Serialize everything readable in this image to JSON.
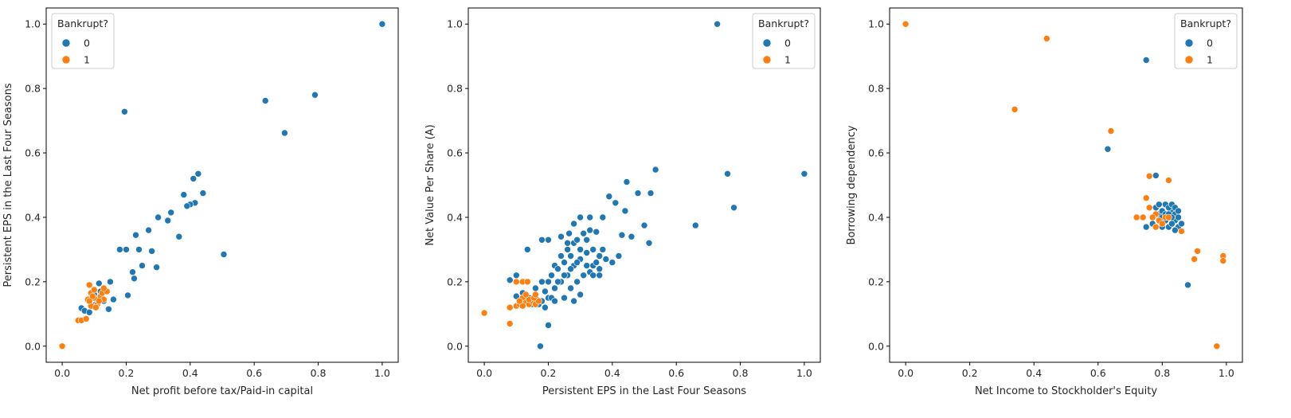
{
  "colors": {
    "class_0": "#1f77b4",
    "class_1": "#ff7f0e",
    "axis": "#000000"
  },
  "chart_data": [
    {
      "type": "scatter",
      "xlabel": "Net profit before tax/Paid-in capital",
      "ylabel": "Persistent EPS in the Last Four Seasons",
      "xlim": [
        -0.05,
        1.05
      ],
      "ylim": [
        -0.05,
        1.05
      ],
      "xticks": [
        "0.0",
        "0.2",
        "0.4",
        "0.6",
        "0.8",
        "1.0"
      ],
      "yticks": [
        "0.0",
        "0.2",
        "0.4",
        "0.6",
        "0.8",
        "1.0"
      ],
      "legend": {
        "title": "Bankrupt?",
        "labels": [
          "0",
          "1"
        ],
        "placement": "top-left"
      },
      "series": [
        {
          "name": "0",
          "points": [
            [
              1.0,
              1.0
            ],
            [
              0.79,
              0.78
            ],
            [
              0.635,
              0.762
            ],
            [
              0.695,
              0.662
            ],
            [
              0.195,
              0.728
            ],
            [
              0.505,
              0.285
            ],
            [
              0.44,
              0.475
            ],
            [
              0.425,
              0.535
            ],
            [
              0.41,
              0.52
            ],
            [
              0.415,
              0.445
            ],
            [
              0.4,
              0.44
            ],
            [
              0.365,
              0.34
            ],
            [
              0.295,
              0.245
            ],
            [
              0.205,
              0.158
            ],
            [
              0.225,
              0.21
            ],
            [
              0.16,
              0.145
            ],
            [
              0.145,
              0.115
            ],
            [
              0.13,
              0.14
            ],
            [
              0.06,
              0.118
            ],
            [
              0.07,
              0.11
            ],
            [
              0.085,
              0.105
            ],
            [
              0.115,
              0.195
            ],
            [
              0.18,
              0.3
            ],
            [
              0.2,
              0.3
            ],
            [
              0.23,
              0.345
            ],
            [
              0.38,
              0.47
            ],
            [
              0.39,
              0.435
            ],
            [
              0.3,
              0.4
            ],
            [
              0.33,
              0.39
            ],
            [
              0.34,
              0.415
            ],
            [
              0.27,
              0.36
            ],
            [
              0.25,
              0.25
            ],
            [
              0.28,
              0.295
            ],
            [
              0.105,
              0.13
            ],
            [
              0.12,
              0.17
            ],
            [
              0.15,
              0.2
            ],
            [
              0.22,
              0.23
            ],
            [
              0.24,
              0.3
            ],
            [
              0.1,
              0.16
            ],
            [
              0.06,
              0.08
            ]
          ]
        },
        {
          "name": "1",
          "points": [
            [
              0.0,
              0.0
            ],
            [
              0.05,
              0.08
            ],
            [
              0.06,
              0.08
            ],
            [
              0.075,
              0.085
            ],
            [
              0.085,
              0.19
            ],
            [
              0.08,
              0.145
            ],
            [
              0.09,
              0.165
            ],
            [
              0.1,
              0.175
            ],
            [
              0.1,
              0.15
            ],
            [
              0.11,
              0.13
            ],
            [
              0.12,
              0.155
            ],
            [
              0.125,
              0.165
            ],
            [
              0.13,
              0.145
            ],
            [
              0.14,
              0.17
            ],
            [
              0.09,
              0.125
            ],
            [
              0.105,
              0.12
            ],
            [
              0.085,
              0.14
            ],
            [
              0.095,
              0.155
            ],
            [
              0.115,
              0.14
            ],
            [
              0.13,
              0.18
            ]
          ]
        }
      ]
    },
    {
      "type": "scatter",
      "xlabel": "Persistent EPS in the Last Four Seasons",
      "ylabel": "Net Value Per Share (A)",
      "xlim": [
        -0.05,
        1.05
      ],
      "ylim": [
        -0.05,
        1.05
      ],
      "xticks": [
        "0.0",
        "0.2",
        "0.4",
        "0.6",
        "0.8",
        "1.0"
      ],
      "yticks": [
        "0.0",
        "0.2",
        "0.4",
        "0.6",
        "0.8",
        "1.0"
      ],
      "legend": {
        "title": "Bankrupt?",
        "labels": [
          "0",
          "1"
        ],
        "placement": "top-right"
      },
      "series": [
        {
          "name": "0",
          "points": [
            [
              0.728,
              1.0
            ],
            [
              0.76,
              0.535
            ],
            [
              1.0,
              0.535
            ],
            [
              0.78,
              0.43
            ],
            [
              0.66,
              0.375
            ],
            [
              0.535,
              0.548
            ],
            [
              0.52,
              0.475
            ],
            [
              0.445,
              0.51
            ],
            [
              0.48,
              0.475
            ],
            [
              0.5,
              0.375
            ],
            [
              0.46,
              0.34
            ],
            [
              0.515,
              0.32
            ],
            [
              0.43,
              0.345
            ],
            [
              0.44,
              0.42
            ],
            [
              0.39,
              0.465
            ],
            [
              0.41,
              0.445
            ],
            [
              0.37,
              0.4
            ],
            [
              0.35,
              0.355
            ],
            [
              0.33,
              0.4
            ],
            [
              0.3,
              0.4
            ],
            [
              0.28,
              0.38
            ],
            [
              0.265,
              0.35
            ],
            [
              0.175,
              0.0
            ],
            [
              0.2,
              0.065
            ],
            [
              0.18,
              0.33
            ],
            [
              0.2,
              0.33
            ],
            [
              0.135,
              0.3
            ],
            [
              0.08,
              0.205
            ],
            [
              0.1,
              0.22
            ],
            [
              0.1,
              0.155
            ],
            [
              0.12,
              0.165
            ],
            [
              0.14,
              0.15
            ],
            [
              0.15,
              0.13
            ],
            [
              0.16,
              0.18
            ],
            [
              0.18,
              0.2
            ],
            [
              0.2,
              0.15
            ],
            [
              0.22,
              0.25
            ],
            [
              0.24,
              0.28
            ],
            [
              0.26,
              0.3
            ],
            [
              0.28,
              0.32
            ],
            [
              0.3,
              0.3
            ],
            [
              0.32,
              0.33
            ],
            [
              0.34,
              0.25
            ],
            [
              0.36,
              0.28
            ],
            [
              0.22,
              0.18
            ],
            [
              0.24,
              0.2
            ],
            [
              0.26,
              0.22
            ],
            [
              0.28,
              0.25
            ],
            [
              0.3,
              0.27
            ],
            [
              0.32,
              0.29
            ],
            [
              0.34,
              0.3
            ],
            [
              0.25,
              0.15
            ],
            [
              0.27,
              0.18
            ],
            [
              0.29,
              0.2
            ],
            [
              0.31,
              0.22
            ],
            [
              0.33,
              0.23
            ],
            [
              0.35,
              0.26
            ],
            [
              0.37,
              0.3
            ],
            [
              0.21,
              0.22
            ],
            [
              0.23,
              0.24
            ],
            [
              0.25,
              0.26
            ],
            [
              0.27,
              0.28
            ],
            [
              0.19,
              0.17
            ],
            [
              0.21,
              0.15
            ],
            [
              0.17,
              0.13
            ],
            [
              0.19,
              0.12
            ],
            [
              0.29,
              0.33
            ],
            [
              0.31,
              0.35
            ],
            [
              0.33,
              0.36
            ],
            [
              0.26,
              0.32
            ],
            [
              0.24,
              0.34
            ],
            [
              0.38,
              0.27
            ],
            [
              0.4,
              0.26
            ],
            [
              0.42,
              0.28
            ],
            [
              0.36,
              0.22
            ],
            [
              0.3,
              0.16
            ],
            [
              0.28,
              0.14
            ],
            [
              0.16,
              0.15
            ],
            [
              0.14,
              0.14
            ],
            [
              0.12,
              0.14
            ],
            [
              0.18,
              0.14
            ],
            [
              0.22,
              0.14
            ],
            [
              0.25,
              0.22
            ],
            [
              0.27,
              0.24
            ],
            [
              0.29,
              0.26
            ],
            [
              0.23,
              0.2
            ],
            [
              0.2,
              0.2
            ],
            [
              0.32,
              0.25
            ],
            [
              0.34,
              0.22
            ],
            [
              0.36,
              0.24
            ]
          ]
        },
        {
          "name": "1",
          "points": [
            [
              0.0,
              0.103
            ],
            [
              0.08,
              0.07
            ],
            [
              0.08,
              0.12
            ],
            [
              0.1,
              0.2
            ],
            [
              0.12,
              0.2
            ],
            [
              0.135,
              0.2
            ],
            [
              0.1,
              0.125
            ],
            [
              0.11,
              0.13
            ],
            [
              0.12,
              0.15
            ],
            [
              0.13,
              0.135
            ],
            [
              0.14,
              0.13
            ],
            [
              0.15,
              0.14
            ],
            [
              0.16,
              0.13
            ],
            [
              0.17,
              0.14
            ],
            [
              0.12,
              0.125
            ],
            [
              0.14,
              0.145
            ],
            [
              0.155,
              0.15
            ],
            [
              0.16,
              0.16
            ],
            [
              0.11,
              0.14
            ],
            [
              0.13,
              0.16
            ]
          ]
        }
      ]
    },
    {
      "type": "scatter",
      "xlabel": "Net Income to Stockholder's Equity",
      "ylabel": "Borrowing dependency",
      "xlim": [
        -0.05,
        1.05
      ],
      "ylim": [
        -0.05,
        1.05
      ],
      "xticks": [
        "0.0",
        "0.2",
        "0.4",
        "0.6",
        "0.8",
        "1.0"
      ],
      "yticks": [
        "0.0",
        "0.2",
        "0.4",
        "0.6",
        "0.8",
        "1.0"
      ],
      "legend": {
        "title": "Bankrupt?",
        "labels": [
          "0",
          "1"
        ],
        "placement": "top-right"
      },
      "series": [
        {
          "name": "0",
          "points": [
            [
              0.75,
              0.888
            ],
            [
              0.63,
              0.612
            ],
            [
              0.78,
              0.53
            ],
            [
              0.88,
              0.19
            ],
            [
              0.75,
              0.37
            ],
            [
              0.77,
              0.38
            ],
            [
              0.8,
              0.38
            ],
            [
              0.82,
              0.4
            ],
            [
              0.84,
              0.39
            ],
            [
              0.85,
              0.37
            ],
            [
              0.83,
              0.42
            ],
            [
              0.81,
              0.44
            ],
            [
              0.79,
              0.41
            ],
            [
              0.8,
              0.42
            ],
            [
              0.82,
              0.43
            ],
            [
              0.83,
              0.44
            ],
            [
              0.84,
              0.41
            ],
            [
              0.85,
              0.4
            ],
            [
              0.86,
              0.38
            ],
            [
              0.81,
              0.39
            ],
            [
              0.82,
              0.37
            ],
            [
              0.83,
              0.38
            ],
            [
              0.84,
              0.36
            ],
            [
              0.78,
              0.43
            ],
            [
              0.79,
              0.44
            ],
            [
              0.8,
              0.4
            ],
            [
              0.81,
              0.41
            ],
            [
              0.82,
              0.41
            ],
            [
              0.83,
              0.4
            ],
            [
              0.84,
              0.43
            ],
            [
              0.8,
              0.37
            ],
            [
              0.85,
              0.42
            ]
          ]
        },
        {
          "name": "1",
          "points": [
            [
              0.0,
              1.0
            ],
            [
              0.44,
              0.955
            ],
            [
              0.34,
              0.735
            ],
            [
              0.64,
              0.668
            ],
            [
              0.76,
              0.528
            ],
            [
              0.82,
              0.515
            ],
            [
              0.75,
              0.46
            ],
            [
              0.76,
              0.43
            ],
            [
              0.78,
              0.41
            ],
            [
              0.77,
              0.4
            ],
            [
              0.79,
              0.39
            ],
            [
              0.81,
              0.4
            ],
            [
              0.72,
              0.4
            ],
            [
              0.74,
              0.4
            ],
            [
              0.8,
              0.38
            ],
            [
              0.82,
              0.4
            ],
            [
              0.86,
              0.357
            ],
            [
              0.91,
              0.295
            ],
            [
              0.9,
              0.27
            ],
            [
              0.99,
              0.28
            ],
            [
              0.99,
              0.265
            ],
            [
              0.97,
              0.0
            ],
            [
              0.78,
              0.37
            ]
          ]
        }
      ]
    }
  ]
}
